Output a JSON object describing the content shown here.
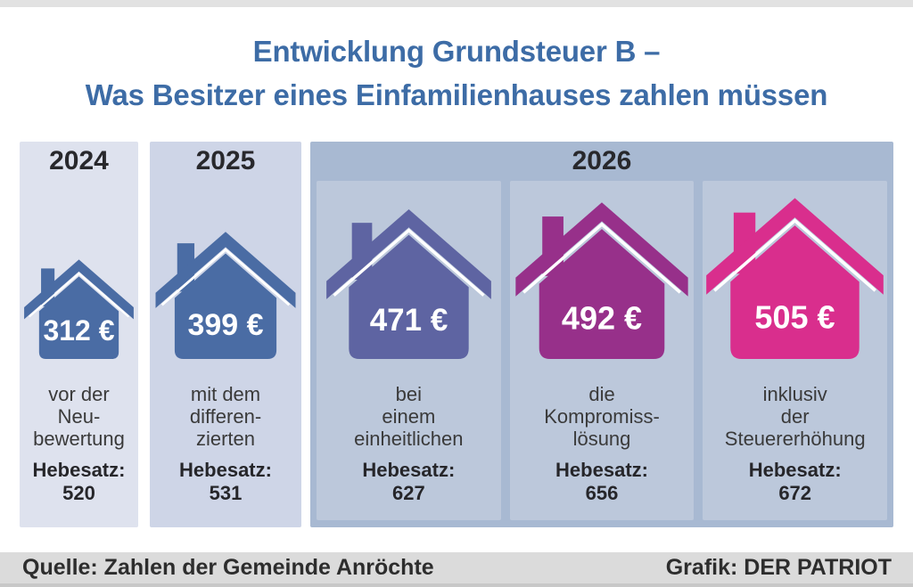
{
  "page": {
    "title_line1": "Entwicklung Grundsteuer B –",
    "title_line2": "Was Besitzer eines Einfamilienhauses zahlen müssen",
    "title_color": "#3d6ca6"
  },
  "footer": {
    "source": "Quelle: Zahlen der Gemeinde Anröchte",
    "credit": "Grafik: DER PATRIOT",
    "bar_color": "#dbdbdb"
  },
  "chart_data": {
    "type": "pictogram-bar",
    "title": "Entwicklung Grundsteuer B – Was Besitzer eines Einfamilienhauses zahlen müssen",
    "unit": "€",
    "icon": "house-icon",
    "categories": [
      "2024",
      "2025",
      "2026 bei einem einheitlichen Hebesatz",
      "2026 die Kompromisslösung",
      "2026 inklusiv der Steuererhöhung"
    ],
    "values": [
      312,
      399,
      471,
      492,
      505
    ],
    "hebesatz_values": [
      520,
      531,
      627,
      656,
      672
    ],
    "groups": [
      {
        "year": "2024",
        "panel_bg": "#dee2ee",
        "items": [
          {
            "amount": 312,
            "amount_label": "312 €",
            "desc_lines": [
              "vor der",
              "Neu-",
              "bewertung"
            ],
            "hebesatz_label": "Hebesatz:",
            "hebesatz": "520",
            "house_color": "#4a6ca4",
            "icon": "house-icon"
          }
        ]
      },
      {
        "year": "2025",
        "panel_bg": "#ced5e7",
        "items": [
          {
            "amount": 399,
            "amount_label": "399 €",
            "desc_lines": [
              "mit dem",
              "differen-",
              "zierten"
            ],
            "hebesatz_label": "Hebesatz:",
            "hebesatz": "531",
            "house_color": "#4a6ca4",
            "icon": "house-icon"
          }
        ]
      },
      {
        "year": "2026",
        "panel_bg": "#a8b9d2",
        "item_bg": "#bcc8db",
        "items": [
          {
            "amount": 471,
            "amount_label": "471 €",
            "desc_lines": [
              "bei",
              "einem",
              "einheitlichen"
            ],
            "hebesatz_label": "Hebesatz:",
            "hebesatz": "627",
            "house_color": "#5e64a2",
            "icon": "house-icon"
          },
          {
            "amount": 492,
            "amount_label": "492 €",
            "desc_lines": [
              "die",
              "Kompromiss-",
              "lösung"
            ],
            "hebesatz_label": "Hebesatz:",
            "hebesatz": "656",
            "house_color": "#97308a",
            "icon": "house-icon"
          },
          {
            "amount": 505,
            "amount_label": "505 €",
            "desc_lines": [
              "inklusiv",
              "der",
              "Steuererhöhung"
            ],
            "hebesatz_label": "Hebesatz:",
            "hebesatz": "672",
            "house_color": "#d92e8d",
            "icon": "house-icon"
          }
        ]
      }
    ]
  }
}
